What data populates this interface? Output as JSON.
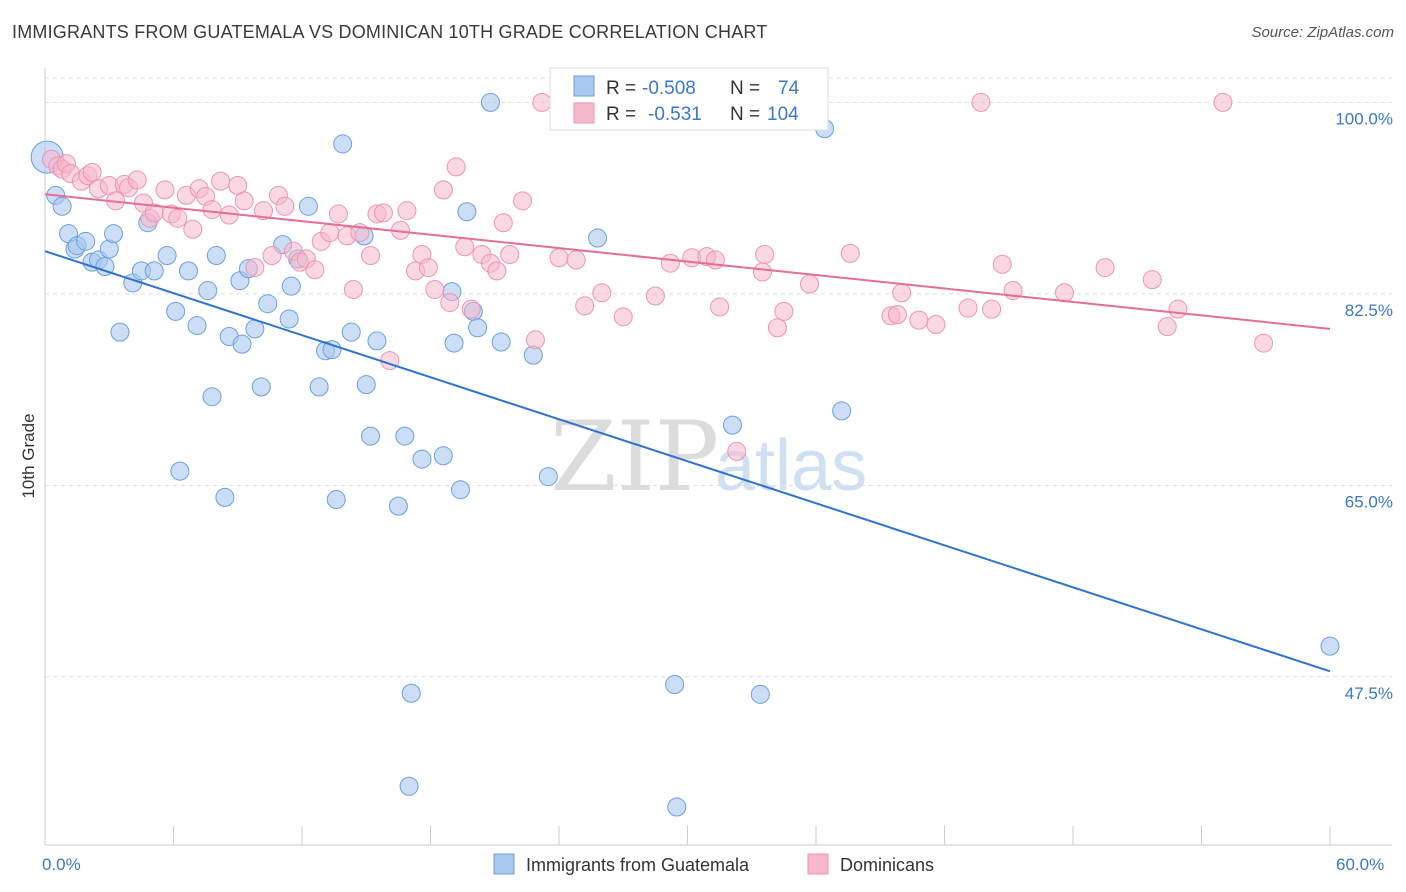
{
  "header": {
    "title": "IMMIGRANTS FROM GUATEMALA VS DOMINICAN 10TH GRADE CORRELATION CHART",
    "source": "Source: ZipAtlas.com"
  },
  "watermark": {
    "zip": "ZIP",
    "atlas": "atlas"
  },
  "legend": {
    "rows": [
      {
        "r_label": "R =",
        "r_value": "-0.508",
        "n_label": "N =",
        "n_value": "74"
      },
      {
        "r_label": "R =",
        "r_value": "-0.531",
        "n_label": "N =",
        "n_value": "104"
      }
    ]
  },
  "colors": {
    "blue_fill": "#a9c8ef",
    "blue_stroke": "#6d9fdc",
    "blue_line": "#2f72d2",
    "pink_fill": "#f6b8cc",
    "pink_stroke": "#ec94b2",
    "pink_line": "#e56e97"
  },
  "chart_data": {
    "type": "scatter",
    "xlabel": "",
    "ylabel": "10th Grade",
    "x_tick_labels": [
      "0.0%",
      "60.0%"
    ],
    "y_tick_labels": [
      "100.0%",
      "82.5%",
      "65.0%",
      "47.5%"
    ],
    "y_ticks": [
      100,
      82.5,
      65,
      47.5
    ],
    "xlim": [
      0,
      60
    ],
    "ylim": [
      33.5,
      102.5
    ],
    "grid": true,
    "legend_position": "top-center",
    "series": [
      {
        "name": "Immigrants from Guatemala",
        "color": "#a9c8ef",
        "trend": {
          "x": [
            0,
            60
          ],
          "y": [
            86.4,
            48.0
          ]
        },
        "points": [
          [
            0.1,
            95.0
          ],
          [
            0.5,
            91.5
          ],
          [
            0.8,
            90.5
          ],
          [
            1.1,
            88.0
          ],
          [
            1.4,
            86.6
          ],
          [
            1.5,
            86.9
          ],
          [
            1.9,
            87.3
          ],
          [
            2.2,
            85.4
          ],
          [
            2.5,
            85.6
          ],
          [
            2.8,
            85.0
          ],
          [
            3.0,
            86.6
          ],
          [
            3.2,
            88.0
          ],
          [
            3.5,
            79.0
          ],
          [
            4.1,
            83.5
          ],
          [
            4.5,
            84.6
          ],
          [
            4.8,
            89.0
          ],
          [
            5.1,
            84.6
          ],
          [
            5.7,
            86.0
          ],
          [
            6.1,
            80.9
          ],
          [
            6.3,
            66.3
          ],
          [
            6.7,
            84.6
          ],
          [
            7.1,
            79.6
          ],
          [
            7.6,
            82.8
          ],
          [
            7.8,
            73.1
          ],
          [
            8.0,
            86.0
          ],
          [
            8.4,
            63.9
          ],
          [
            8.6,
            78.6
          ],
          [
            9.1,
            83.7
          ],
          [
            9.2,
            77.9
          ],
          [
            9.5,
            84.8
          ],
          [
            9.8,
            79.3
          ],
          [
            10.1,
            74.0
          ],
          [
            10.4,
            81.6
          ],
          [
            11.1,
            87.0
          ],
          [
            11.4,
            80.2
          ],
          [
            11.5,
            83.2
          ],
          [
            11.8,
            85.7
          ],
          [
            12.3,
            90.5
          ],
          [
            12.8,
            74.0
          ],
          [
            13.1,
            77.3
          ],
          [
            13.4,
            77.4
          ],
          [
            13.6,
            63.7
          ],
          [
            13.9,
            96.2
          ],
          [
            14.3,
            79.0
          ],
          [
            14.9,
            87.8
          ],
          [
            15.0,
            74.2
          ],
          [
            15.2,
            69.5
          ],
          [
            15.5,
            78.2
          ],
          [
            16.5,
            63.1
          ],
          [
            16.8,
            69.5
          ],
          [
            17.0,
            37.5
          ],
          [
            17.1,
            46.0
          ],
          [
            17.6,
            67.4
          ],
          [
            18.6,
            67.7
          ],
          [
            19.0,
            82.7
          ],
          [
            19.1,
            78.0
          ],
          [
            19.4,
            64.6
          ],
          [
            19.7,
            90.0
          ],
          [
            20.0,
            80.9
          ],
          [
            20.2,
            79.4
          ],
          [
            20.8,
            100.0
          ],
          [
            21.3,
            78.1
          ],
          [
            22.8,
            76.9
          ],
          [
            23.5,
            65.8
          ],
          [
            25.8,
            87.6
          ],
          [
            29.4,
            46.8
          ],
          [
            29.5,
            35.6
          ],
          [
            32.1,
            70.5
          ],
          [
            33.4,
            45.9
          ],
          [
            36.4,
            97.6
          ],
          [
            37.2,
            71.8
          ],
          [
            60.0,
            50.3
          ]
        ]
      },
      {
        "name": "Dominicans",
        "color": "#f6b8cc",
        "trend": {
          "x": [
            0,
            60
          ],
          "y": [
            91.6,
            79.3
          ]
        },
        "points": [
          [
            0.3,
            94.8
          ],
          [
            0.6,
            94.2
          ],
          [
            0.8,
            93.9
          ],
          [
            1.0,
            94.4
          ],
          [
            1.2,
            93.5
          ],
          [
            1.7,
            92.8
          ],
          [
            2.0,
            93.3
          ],
          [
            2.2,
            93.6
          ],
          [
            2.5,
            92.1
          ],
          [
            3.0,
            92.4
          ],
          [
            3.3,
            91.0
          ],
          [
            3.7,
            92.5
          ],
          [
            3.9,
            92.2
          ],
          [
            4.3,
            92.9
          ],
          [
            4.6,
            90.8
          ],
          [
            4.9,
            89.4
          ],
          [
            5.1,
            89.9
          ],
          [
            5.6,
            92.0
          ],
          [
            5.9,
            89.8
          ],
          [
            6.2,
            89.4
          ],
          [
            6.6,
            91.5
          ],
          [
            6.9,
            88.4
          ],
          [
            7.2,
            92.1
          ],
          [
            7.5,
            91.4
          ],
          [
            7.8,
            90.2
          ],
          [
            8.2,
            92.8
          ],
          [
            8.6,
            89.7
          ],
          [
            9.0,
            92.4
          ],
          [
            9.3,
            91.0
          ],
          [
            9.8,
            84.9
          ],
          [
            10.2,
            90.1
          ],
          [
            10.6,
            86.0
          ],
          [
            10.9,
            91.5
          ],
          [
            11.2,
            90.5
          ],
          [
            11.6,
            86.4
          ],
          [
            11.9,
            85.4
          ],
          [
            12.2,
            85.7
          ],
          [
            12.6,
            84.7
          ],
          [
            12.9,
            87.3
          ],
          [
            13.3,
            88.1
          ],
          [
            13.7,
            89.8
          ],
          [
            14.1,
            87.8
          ],
          [
            14.4,
            82.9
          ],
          [
            14.7,
            88.1
          ],
          [
            15.2,
            86.0
          ],
          [
            15.5,
            89.8
          ],
          [
            15.8,
            89.9
          ],
          [
            16.1,
            76.4
          ],
          [
            16.6,
            88.3
          ],
          [
            16.9,
            90.1
          ],
          [
            17.3,
            84.6
          ],
          [
            17.6,
            86.1
          ],
          [
            17.9,
            84.9
          ],
          [
            18.2,
            82.9
          ],
          [
            18.6,
            92.0
          ],
          [
            18.9,
            81.7
          ],
          [
            19.2,
            94.1
          ],
          [
            19.6,
            86.8
          ],
          [
            19.9,
            81.1
          ],
          [
            20.4,
            86.1
          ],
          [
            20.8,
            85.3
          ],
          [
            21.1,
            84.6
          ],
          [
            21.4,
            89.0
          ],
          [
            21.7,
            86.1
          ],
          [
            22.3,
            91.0
          ],
          [
            22.9,
            78.3
          ],
          [
            23.2,
            100.0
          ],
          [
            24.0,
            85.8
          ],
          [
            24.8,
            85.6
          ],
          [
            25.2,
            81.4
          ],
          [
            26.0,
            82.6
          ],
          [
            27.0,
            80.4
          ],
          [
            28.5,
            82.3
          ],
          [
            29.2,
            85.3
          ],
          [
            30.2,
            85.8
          ],
          [
            30.9,
            85.9
          ],
          [
            31.3,
            85.6
          ],
          [
            31.5,
            81.3
          ],
          [
            32.3,
            68.1
          ],
          [
            33.5,
            84.5
          ],
          [
            33.6,
            86.1
          ],
          [
            34.2,
            79.4
          ],
          [
            34.5,
            80.9
          ],
          [
            35.7,
            83.4
          ],
          [
            37.6,
            86.2
          ],
          [
            39.5,
            80.5
          ],
          [
            39.8,
            80.6
          ],
          [
            40.0,
            82.6
          ],
          [
            40.8,
            80.1
          ],
          [
            41.6,
            79.7
          ],
          [
            43.1,
            81.2
          ],
          [
            43.7,
            100.0
          ],
          [
            44.2,
            81.1
          ],
          [
            44.7,
            85.2
          ],
          [
            45.2,
            82.8
          ],
          [
            47.6,
            82.6
          ],
          [
            49.5,
            84.9
          ],
          [
            51.7,
            83.8
          ],
          [
            52.4,
            79.5
          ],
          [
            52.9,
            81.1
          ],
          [
            56.9,
            78.0
          ],
          [
            55.0,
            100.0
          ]
        ]
      }
    ]
  },
  "bottom_legend": [
    {
      "label": "Immigrants from Guatemala"
    },
    {
      "label": "Dominicans"
    }
  ]
}
